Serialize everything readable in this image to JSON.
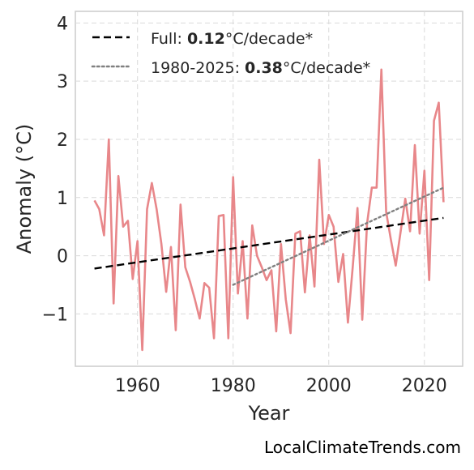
{
  "chart_data": {
    "type": "line",
    "xlabel": "Year",
    "ylabel": "Anomaly (°C)",
    "xlim": [
      1947,
      2028
    ],
    "ylim": [
      -1.9,
      4.2
    ],
    "xticks": [
      1960,
      1980,
      2000,
      2020
    ],
    "xtick_labels": [
      "1960",
      "1980",
      "2000",
      "2020"
    ],
    "yticks": [
      -1,
      0,
      1,
      2,
      3,
      4
    ],
    "ytick_labels": [
      "−1",
      "0",
      "1",
      "2",
      "3",
      "4"
    ],
    "grid": true,
    "legend_position": "top-left",
    "series": [
      {
        "style": "solid",
        "color": "#e8878a",
        "x": [
          1951,
          1952,
          1953,
          1954,
          1955,
          1956,
          1957,
          1958,
          1959,
          1960,
          1961,
          1962,
          1963,
          1964,
          1965,
          1966,
          1967,
          1968,
          1969,
          1970,
          1971,
          1972,
          1973,
          1974,
          1975,
          1976,
          1977,
          1978,
          1979,
          1980,
          1981,
          1982,
          1983,
          1984,
          1985,
          1986,
          1987,
          1988,
          1989,
          1990,
          1991,
          1992,
          1993,
          1994,
          1995,
          1996,
          1997,
          1998,
          1999,
          2000,
          2001,
          2002,
          2003,
          2004,
          2005,
          2006,
          2007,
          2008,
          2009,
          2010,
          2011,
          2012,
          2013,
          2014,
          2015,
          2016,
          2017,
          2018,
          2019,
          2020,
          2021,
          2022,
          2023,
          2024
        ],
        "y": [
          0.95,
          0.8,
          0.35,
          2.0,
          -0.82,
          1.37,
          0.5,
          0.6,
          -0.4,
          0.25,
          -1.62,
          0.8,
          1.25,
          0.8,
          0.2,
          -0.62,
          0.15,
          -1.28,
          0.88,
          -0.2,
          -0.45,
          -0.75,
          -1.08,
          -0.47,
          -0.55,
          -1.42,
          0.68,
          0.7,
          -1.42,
          1.35,
          -0.65,
          0.25,
          -1.08,
          0.52,
          0.0,
          -0.2,
          -0.42,
          -0.25,
          -1.3,
          0.2,
          -0.75,
          -1.33,
          0.38,
          0.42,
          -0.63,
          0.35,
          -0.53,
          1.65,
          0.2,
          0.7,
          0.5,
          -0.45,
          0.03,
          -1.15,
          -0.2,
          0.82,
          -1.1,
          0.55,
          1.17,
          1.17,
          3.2,
          0.75,
          0.27,
          -0.17,
          0.4,
          0.98,
          0.42,
          1.9,
          0.38,
          1.46,
          -0.42,
          2.32,
          2.63,
          0.92
        ]
      },
      {
        "style": "dashed",
        "color": "#000000",
        "x": [
          1951,
          2024
        ],
        "y": [
          -0.22,
          0.65
        ]
      },
      {
        "style": "dotted",
        "color": "#808080",
        "x": [
          1980,
          2024
        ],
        "y": [
          -0.5,
          1.17
        ]
      }
    ],
    "legend": [
      {
        "style": "dashed",
        "color": "#000000",
        "prefix": "Full: ",
        "bold": "0.12",
        "suffix": "°C/decade*"
      },
      {
        "style": "dotted",
        "color": "#808080",
        "prefix": "1980-2025: ",
        "bold": "0.38",
        "suffix": "°C/decade*"
      }
    ]
  },
  "credit": "LocalClimateTrends.com"
}
